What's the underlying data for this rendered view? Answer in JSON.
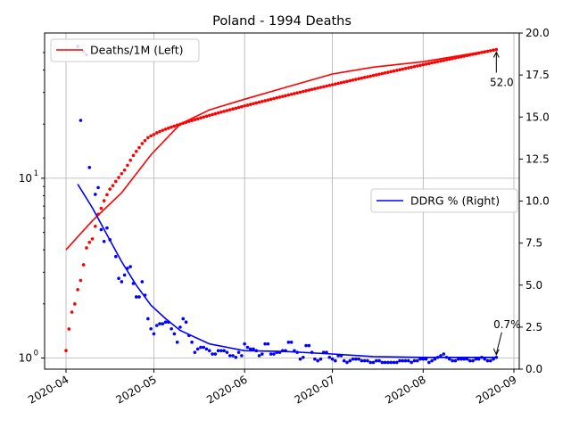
{
  "chart_data": {
    "type": "line",
    "title": "Poland - 1994 Deaths",
    "xlabel": "",
    "ylabel_left": "",
    "ylabel_right": "",
    "grid": true,
    "x_axis": {
      "type": "date",
      "range": [
        "2020-04-01",
        "2020-09-01"
      ],
      "ticks": [
        "2020-04",
        "2020-05",
        "2020-06",
        "2020-07",
        "2020-08",
        "2020-09"
      ]
    },
    "y_left": {
      "scale": "log",
      "range": [
        0.95,
        60
      ],
      "ticks": [
        "10^0",
        "10^1"
      ]
    },
    "y_right": {
      "scale": "linear",
      "range": [
        0,
        20
      ],
      "ticks": [
        "0.0",
        "2.5",
        "5.0",
        "7.5",
        "10.0",
        "12.5",
        "15.0",
        "17.5",
        "20.0"
      ]
    },
    "legend_left": {
      "placement": "top-left",
      "label": "Deaths/1M (Left)",
      "color": "#ff0000"
    },
    "legend_right": {
      "placement": "center-right",
      "label": "DDRG % (Right)",
      "color": "#0000ff"
    },
    "series": [
      {
        "name": "Deaths/1M (Left)",
        "axis": "left",
        "color": "#ff0000",
        "x": [
          "2020-04-01",
          "2020-04-10",
          "2020-04-20",
          "2020-04-30",
          "2020-05-10",
          "2020-05-20",
          "2020-06-01",
          "2020-06-15",
          "2020-07-01",
          "2020-07-15",
          "2020-08-01",
          "2020-08-15",
          "2020-08-26"
        ],
        "values": [
          4.0,
          5.8,
          8.3,
          13.5,
          20.0,
          24.0,
          27.5,
          32.0,
          38.0,
          41.5,
          44.5,
          48.5,
          52.0
        ]
      },
      {
        "name": "DDRG % (Right)",
        "axis": "right",
        "color": "#0000ff",
        "x": [
          "2020-04-05",
          "2020-04-10",
          "2020-04-15",
          "2020-04-20",
          "2020-04-25",
          "2020-04-30",
          "2020-05-05",
          "2020-05-10",
          "2020-05-20",
          "2020-06-01",
          "2020-06-15",
          "2020-07-01",
          "2020-07-15",
          "2020-08-01",
          "2020-08-15",
          "2020-08-26"
        ],
        "values": [
          11.0,
          9.6,
          8.0,
          6.4,
          5.0,
          3.8,
          3.0,
          2.3,
          1.5,
          1.1,
          1.05,
          0.9,
          0.75,
          0.7,
          0.7,
          0.7
        ]
      }
    ],
    "scatter": [
      {
        "name": "Deaths/1M daily",
        "axis": "left",
        "color": "#ff0000",
        "start": "2020-04-01",
        "end": "2020-08-26",
        "points": [
          [
            "2020-04-01",
            1.1
          ],
          [
            "2020-04-02",
            1.45
          ],
          [
            "2020-04-03",
            1.8
          ],
          [
            "2020-04-04",
            2.0
          ],
          [
            "2020-04-05",
            2.4
          ],
          [
            "2020-04-06",
            2.7
          ],
          [
            "2020-04-07",
            3.3
          ],
          [
            "2020-04-08",
            4.1
          ],
          [
            "2020-04-09",
            4.4
          ],
          [
            "2020-04-10",
            4.6
          ],
          [
            "2020-04-11",
            5.4
          ],
          [
            "2020-04-12",
            6.3
          ],
          [
            "2020-04-13",
            6.8
          ],
          [
            "2020-04-14",
            7.5
          ],
          [
            "2020-04-15",
            8.1
          ],
          [
            "2020-04-16",
            8.7
          ],
          [
            "2020-04-17",
            9.1
          ],
          [
            "2020-04-18",
            9.6
          ],
          [
            "2020-04-19",
            10.1
          ],
          [
            "2020-04-20",
            10.6
          ],
          [
            "2020-04-21",
            11.1
          ],
          [
            "2020-04-22",
            11.8
          ],
          [
            "2020-04-23",
            12.6
          ],
          [
            "2020-04-24",
            13.4
          ],
          [
            "2020-04-25",
            14.1
          ],
          [
            "2020-04-26",
            14.8
          ],
          [
            "2020-04-27",
            15.6
          ],
          [
            "2020-04-28",
            16.2
          ],
          [
            "2020-04-29",
            16.8
          ],
          [
            "2020-04-30",
            17.2
          ]
        ],
        "fit": {
          "from": "2020-05-01",
          "to": "2020-08-26",
          "start_value": 17.5,
          "end_value": 52.0
        }
      },
      {
        "name": "DDRG % daily",
        "axis": "right",
        "color": "#0000ff",
        "start": "2020-04-01",
        "end": "2020-08-26",
        "points": [
          [
            "2020-04-01",
            22.0
          ],
          [
            "2020-04-05",
            19.2
          ],
          [
            "2020-04-06",
            14.8
          ],
          [
            "2020-04-07",
            18.9
          ],
          [
            "2020-04-08",
            18.7
          ],
          [
            "2020-04-09",
            12.0
          ],
          [
            "2020-04-11",
            10.4
          ],
          [
            "2020-04-12",
            10.8
          ],
          [
            "2020-04-13",
            8.3
          ],
          [
            "2020-04-14",
            7.6
          ],
          [
            "2020-04-15",
            8.4
          ],
          [
            "2020-04-16",
            7.7
          ],
          [
            "2020-04-18",
            6.7
          ],
          [
            "2020-04-19",
            5.4
          ],
          [
            "2020-04-20",
            5.2
          ],
          [
            "2020-04-21",
            5.6
          ],
          [
            "2020-04-22",
            6.0
          ],
          [
            "2020-04-23",
            6.1
          ],
          [
            "2020-04-24",
            5.1
          ],
          [
            "2020-04-25",
            4.3
          ],
          [
            "2020-04-26",
            4.3
          ],
          [
            "2020-04-27",
            5.2
          ],
          [
            "2020-04-28",
            4.4
          ],
          [
            "2020-04-29",
            3.0
          ],
          [
            "2020-04-30",
            2.4
          ],
          [
            "2020-05-01",
            2.1
          ],
          [
            "2020-05-02",
            2.6
          ],
          [
            "2020-05-03",
            2.7
          ],
          [
            "2020-05-04",
            2.7
          ],
          [
            "2020-05-05",
            2.8
          ],
          [
            "2020-05-06",
            2.8
          ],
          [
            "2020-05-07",
            2.4
          ],
          [
            "2020-05-08",
            2.1
          ],
          [
            "2020-05-09",
            1.6
          ],
          [
            "2020-05-10",
            2.5
          ],
          [
            "2020-05-11",
            3.0
          ],
          [
            "2020-05-12",
            2.8
          ],
          [
            "2020-05-13",
            2.0
          ],
          [
            "2020-05-14",
            1.6
          ],
          [
            "2020-05-15",
            1.0
          ],
          [
            "2020-05-16",
            1.2
          ],
          [
            "2020-05-17",
            1.3
          ],
          [
            "2020-05-18",
            1.3
          ],
          [
            "2020-05-19",
            1.2
          ],
          [
            "2020-05-20",
            1.1
          ],
          [
            "2020-05-21",
            0.9
          ],
          [
            "2020-05-22",
            0.9
          ],
          [
            "2020-05-23",
            1.1
          ],
          [
            "2020-05-24",
            1.1
          ],
          [
            "2020-05-25",
            1.1
          ],
          [
            "2020-05-26",
            1.0
          ],
          [
            "2020-05-27",
            0.8
          ],
          [
            "2020-05-28",
            0.8
          ],
          [
            "2020-05-29",
            0.7
          ],
          [
            "2020-05-30",
            1.0
          ],
          [
            "2020-05-31",
            0.8
          ],
          [
            "2020-06-01",
            1.5
          ],
          [
            "2020-06-02",
            1.3
          ],
          [
            "2020-06-03",
            1.2
          ],
          [
            "2020-06-04",
            1.2
          ],
          [
            "2020-06-05",
            1.1
          ],
          [
            "2020-06-06",
            0.8
          ],
          [
            "2020-06-07",
            0.9
          ],
          [
            "2020-06-08",
            1.5
          ],
          [
            "2020-06-09",
            1.5
          ],
          [
            "2020-06-10",
            0.9
          ],
          [
            "2020-06-11",
            0.9
          ],
          [
            "2020-06-12",
            1.0
          ],
          [
            "2020-06-13",
            1.0
          ],
          [
            "2020-06-14",
            1.1
          ],
          [
            "2020-06-15",
            1.1
          ],
          [
            "2020-06-16",
            1.6
          ],
          [
            "2020-06-17",
            1.6
          ],
          [
            "2020-06-18",
            1.1
          ],
          [
            "2020-06-19",
            1.0
          ],
          [
            "2020-06-20",
            0.6
          ],
          [
            "2020-06-21",
            0.7
          ],
          [
            "2020-06-22",
            1.4
          ],
          [
            "2020-06-23",
            1.4
          ],
          [
            "2020-06-24",
            1.0
          ],
          [
            "2020-06-25",
            0.6
          ],
          [
            "2020-06-26",
            0.5
          ],
          [
            "2020-06-27",
            0.6
          ],
          [
            "2020-06-28",
            1.0
          ],
          [
            "2020-06-29",
            1.0
          ],
          [
            "2020-06-30",
            0.7
          ],
          [
            "2020-07-01",
            0.6
          ],
          [
            "2020-07-02",
            0.5
          ],
          [
            "2020-07-03",
            0.8
          ],
          [
            "2020-07-04",
            0.8
          ],
          [
            "2020-07-05",
            0.5
          ],
          [
            "2020-07-06",
            0.4
          ],
          [
            "2020-07-07",
            0.5
          ],
          [
            "2020-07-08",
            0.6
          ],
          [
            "2020-07-09",
            0.6
          ],
          [
            "2020-07-10",
            0.6
          ],
          [
            "2020-07-11",
            0.5
          ],
          [
            "2020-07-12",
            0.5
          ],
          [
            "2020-07-13",
            0.5
          ],
          [
            "2020-07-14",
            0.4
          ],
          [
            "2020-07-15",
            0.4
          ],
          [
            "2020-07-16",
            0.5
          ],
          [
            "2020-07-17",
            0.5
          ],
          [
            "2020-07-18",
            0.4
          ],
          [
            "2020-07-19",
            0.4
          ],
          [
            "2020-07-20",
            0.4
          ],
          [
            "2020-07-21",
            0.4
          ],
          [
            "2020-07-22",
            0.4
          ],
          [
            "2020-07-23",
            0.4
          ],
          [
            "2020-07-24",
            0.5
          ],
          [
            "2020-07-25",
            0.5
          ],
          [
            "2020-07-26",
            0.5
          ],
          [
            "2020-07-27",
            0.5
          ],
          [
            "2020-07-28",
            0.4
          ],
          [
            "2020-07-29",
            0.5
          ],
          [
            "2020-07-30",
            0.5
          ],
          [
            "2020-07-31",
            0.6
          ],
          [
            "2020-08-01",
            0.6
          ],
          [
            "2020-08-02",
            0.6
          ],
          [
            "2020-08-03",
            0.4
          ],
          [
            "2020-08-04",
            0.5
          ],
          [
            "2020-08-05",
            0.6
          ],
          [
            "2020-08-06",
            0.7
          ],
          [
            "2020-08-07",
            0.8
          ],
          [
            "2020-08-08",
            0.9
          ],
          [
            "2020-08-09",
            0.7
          ],
          [
            "2020-08-10",
            0.6
          ],
          [
            "2020-08-11",
            0.5
          ],
          [
            "2020-08-12",
            0.5
          ],
          [
            "2020-08-13",
            0.6
          ],
          [
            "2020-08-14",
            0.6
          ],
          [
            "2020-08-15",
            0.6
          ],
          [
            "2020-08-16",
            0.6
          ],
          [
            "2020-08-17",
            0.5
          ],
          [
            "2020-08-18",
            0.5
          ],
          [
            "2020-08-19",
            0.6
          ],
          [
            "2020-08-20",
            0.6
          ],
          [
            "2020-08-21",
            0.7
          ],
          [
            "2020-08-22",
            0.6
          ],
          [
            "2020-08-23",
            0.5
          ],
          [
            "2020-08-24",
            0.5
          ],
          [
            "2020-08-25",
            0.6
          ],
          [
            "2020-08-26",
            0.7
          ]
        ]
      }
    ],
    "annotations": [
      {
        "text": "52.0",
        "axis": "left",
        "x": "2020-08-26",
        "y": 52.0
      },
      {
        "text": "0.7%",
        "axis": "right",
        "x": "2020-08-26",
        "y": 0.7
      }
    ]
  }
}
